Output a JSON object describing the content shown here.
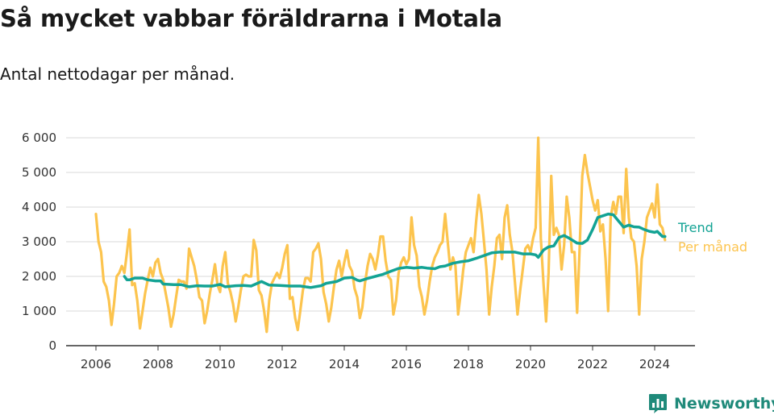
{
  "title": "Så mycket vabbar föräldrarna i Motala",
  "subtitle": "Antal nettodagar per månad.",
  "brand": "Newsworthy",
  "colors": {
    "trend": "#13a394",
    "monthly": "#fcc44e",
    "grid": "#d9d9d9",
    "axis": "#333333",
    "brand": "#1f8a7a"
  },
  "chart_data": {
    "type": "line",
    "title": "Så mycket vabbar föräldrarna i Motala",
    "subtitle": "Antal nettodagar per månad.",
    "xlabel": "",
    "ylabel": "",
    "xlim": [
      2006.0,
      2024.5
    ],
    "ylim": [
      0,
      6000
    ],
    "y_ticks": [
      0,
      1000,
      2000,
      3000,
      4000,
      5000,
      6000
    ],
    "y_tick_labels": [
      "0",
      "1 000",
      "2 000",
      "3 000",
      "4 000",
      "5 000",
      "6 000"
    ],
    "x_ticks": [
      2006,
      2008,
      2010,
      2012,
      2014,
      2016,
      2018,
      2020,
      2022,
      2024
    ],
    "x_tick_labels": [
      "2006",
      "2008",
      "2010",
      "2012",
      "2014",
      "2016",
      "2018",
      "2020",
      "2022",
      "2024"
    ],
    "grid": "horizontal",
    "legend": "right end labels",
    "series": [
      {
        "name": "Per månad",
        "color": "#fcc44e",
        "x": [
          2006.0,
          2006.083,
          2006.167,
          2006.25,
          2006.333,
          2006.417,
          2006.5,
          2006.583,
          2006.667,
          2006.75,
          2006.833,
          2006.917,
          2007.0,
          2007.083,
          2007.167,
          2007.25,
          2007.333,
          2007.417,
          2007.5,
          2007.583,
          2007.667,
          2007.75,
          2007.833,
          2007.917,
          2008.0,
          2008.083,
          2008.167,
          2008.25,
          2008.333,
          2008.417,
          2008.5,
          2008.583,
          2008.667,
          2008.75,
          2008.833,
          2008.917,
          2009.0,
          2009.083,
          2009.167,
          2009.25,
          2009.333,
          2009.417,
          2009.5,
          2009.583,
          2009.667,
          2009.75,
          2009.833,
          2009.917,
          2010.0,
          2010.083,
          2010.167,
          2010.25,
          2010.333,
          2010.417,
          2010.5,
          2010.583,
          2010.667,
          2010.75,
          2010.833,
          2010.917,
          2011.0,
          2011.083,
          2011.167,
          2011.25,
          2011.333,
          2011.417,
          2011.5,
          2011.583,
          2011.667,
          2011.75,
          2011.833,
          2011.917,
          2012.0,
          2012.083,
          2012.167,
          2012.25,
          2012.333,
          2012.417,
          2012.5,
          2012.583,
          2012.667,
          2012.75,
          2012.833,
          2012.917,
          2013.0,
          2013.083,
          2013.167,
          2013.25,
          2013.333,
          2013.417,
          2013.5,
          2013.583,
          2013.667,
          2013.75,
          2013.833,
          2013.917,
          2014.0,
          2014.083,
          2014.167,
          2014.25,
          2014.333,
          2014.417,
          2014.5,
          2014.583,
          2014.667,
          2014.75,
          2014.833,
          2014.917,
          2015.0,
          2015.083,
          2015.167,
          2015.25,
          2015.333,
          2015.417,
          2015.5,
          2015.583,
          2015.667,
          2015.75,
          2015.833,
          2015.917,
          2016.0,
          2016.083,
          2016.167,
          2016.25,
          2016.333,
          2016.417,
          2016.5,
          2016.583,
          2016.667,
          2016.75,
          2016.833,
          2016.917,
          2017.0,
          2017.083,
          2017.167,
          2017.25,
          2017.333,
          2017.417,
          2017.5,
          2017.583,
          2017.667,
          2017.75,
          2017.833,
          2017.917,
          2018.0,
          2018.083,
          2018.167,
          2018.25,
          2018.333,
          2018.417,
          2018.5,
          2018.583,
          2018.667,
          2018.75,
          2018.833,
          2018.917,
          2019.0,
          2019.083,
          2019.167,
          2019.25,
          2019.333,
          2019.417,
          2019.5,
          2019.583,
          2019.667,
          2019.75,
          2019.833,
          2019.917,
          2020.0,
          2020.083,
          2020.167,
          2020.25,
          2020.333,
          2020.417,
          2020.5,
          2020.583,
          2020.667,
          2020.75,
          2020.833,
          2020.917,
          2021.0,
          2021.083,
          2021.167,
          2021.25,
          2021.333,
          2021.417,
          2021.5,
          2021.583,
          2021.667,
          2021.75,
          2021.833,
          2021.917,
          2022.0,
          2022.083,
          2022.167,
          2022.25,
          2022.333,
          2022.417,
          2022.5,
          2022.583,
          2022.667,
          2022.75,
          2022.833,
          2022.917,
          2023.0,
          2023.083,
          2023.167,
          2023.25,
          2023.333,
          2023.417,
          2023.5,
          2023.583,
          2023.667,
          2023.75,
          2023.833,
          2023.917,
          2024.0,
          2024.083,
          2024.167,
          2024.25,
          2024.333
        ],
        "values": [
          3800,
          3000,
          2700,
          1850,
          1700,
          1300,
          600,
          1200,
          2000,
          2100,
          2300,
          2100,
          2700,
          3350,
          1750,
          1800,
          1300,
          500,
          1000,
          1500,
          1900,
          2250,
          2000,
          2400,
          2500,
          2100,
          1900,
          1500,
          1100,
          550,
          900,
          1400,
          1900,
          1850,
          1850,
          1650,
          2800,
          2550,
          2300,
          1900,
          1400,
          1300,
          650,
          1000,
          1500,
          1900,
          2350,
          1750,
          1550,
          2300,
          2700,
          1800,
          1550,
          1200,
          700,
          1100,
          1600,
          2000,
          2050,
          2000,
          2000,
          3050,
          2750,
          1600,
          1450,
          1000,
          400,
          1300,
          1800,
          1950,
          2100,
          1950,
          2250,
          2650,
          2900,
          1350,
          1400,
          800,
          450,
          1000,
          1600,
          1950,
          1950,
          1850,
          2700,
          2800,
          2950,
          2500,
          1550,
          1200,
          700,
          1100,
          1700,
          2200,
          2450,
          2000,
          2400,
          2750,
          2300,
          2150,
          1650,
          1400,
          800,
          1100,
          1800,
          2300,
          2650,
          2500,
          2200,
          2600,
          3150,
          3150,
          2450,
          2000,
          1900,
          900,
          1300,
          2100,
          2400,
          2550,
          2350,
          2500,
          3700,
          2900,
          2600,
          1700,
          1400,
          900,
          1300,
          1850,
          2300,
          2550,
          2700,
          2900,
          3000,
          3800,
          3000,
          2200,
          2550,
          2300,
          900,
          1500,
          2200,
          2700,
          2900,
          3100,
          2700,
          3600,
          4350,
          3800,
          3000,
          2200,
          900,
          1700,
          2300,
          3100,
          3200,
          2500,
          3700,
          4050,
          3200,
          2700,
          1800,
          900,
          1600,
          2200,
          2800,
          2900,
          2700,
          3100,
          3400,
          6000,
          3100,
          1800,
          700,
          2100,
          4900,
          3200,
          3400,
          3200,
          2200,
          2900,
          4300,
          3700,
          2700,
          2700,
          950,
          2800,
          4900,
          5500,
          5000,
          4600,
          4200,
          3900,
          4200,
          3300,
          3500,
          2500,
          1000,
          3700,
          4150,
          3800,
          4300,
          4300,
          3250,
          5100,
          3700,
          3100,
          3000,
          2300,
          900,
          2500,
          3000,
          3700,
          3900,
          4100,
          3700,
          4650,
          3500,
          3400,
          3050
        ]
      },
      {
        "name": "Trend",
        "color": "#13a394",
        "x": [
          2006.917,
          2007.0,
          2007.083,
          2007.25,
          2007.5,
          2007.667,
          2007.917,
          2008.083,
          2008.167,
          2008.5,
          2008.75,
          2009.0,
          2009.25,
          2009.5,
          2009.75,
          2010.0,
          2010.167,
          2010.5,
          2010.75,
          2011.0,
          2011.333,
          2011.583,
          2011.917,
          2012.25,
          2012.583,
          2012.917,
          2013.25,
          2013.417,
          2013.75,
          2014.0,
          2014.25,
          2014.417,
          2014.5,
          2014.75,
          2015.0,
          2015.25,
          2015.5,
          2015.75,
          2016.0,
          2016.25,
          2016.5,
          2016.667,
          2016.917,
          2017.083,
          2017.25,
          2017.5,
          2017.75,
          2018.0,
          2018.25,
          2018.5,
          2018.75,
          2019.0,
          2019.25,
          2019.5,
          2019.75,
          2020.0,
          2020.167,
          2020.25,
          2020.417,
          2020.583,
          2020.75,
          2020.917,
          2021.083,
          2021.25,
          2021.5,
          2021.667,
          2021.833,
          2022.0,
          2022.167,
          2022.333,
          2022.5,
          2022.667,
          2022.833,
          2023.0,
          2023.167,
          2023.333,
          2023.5,
          2023.667,
          2023.833,
          2024.0,
          2024.083,
          2024.25,
          2024.333
        ],
        "values": [
          2000,
          1900,
          1900,
          1950,
          1950,
          1900,
          1870,
          1870,
          1780,
          1760,
          1760,
          1700,
          1730,
          1720,
          1720,
          1770,
          1700,
          1730,
          1740,
          1720,
          1850,
          1750,
          1740,
          1720,
          1720,
          1680,
          1730,
          1800,
          1850,
          1950,
          1970,
          1890,
          1870,
          1940,
          2000,
          2060,
          2150,
          2230,
          2260,
          2240,
          2260,
          2240,
          2220,
          2280,
          2300,
          2380,
          2420,
          2450,
          2520,
          2600,
          2680,
          2700,
          2700,
          2700,
          2650,
          2650,
          2620,
          2550,
          2760,
          2850,
          2880,
          3120,
          3180,
          3100,
          2960,
          2950,
          3050,
          3350,
          3700,
          3750,
          3800,
          3780,
          3600,
          3420,
          3480,
          3430,
          3420,
          3350,
          3300,
          3270,
          3300,
          3150,
          3150
        ]
      }
    ]
  }
}
